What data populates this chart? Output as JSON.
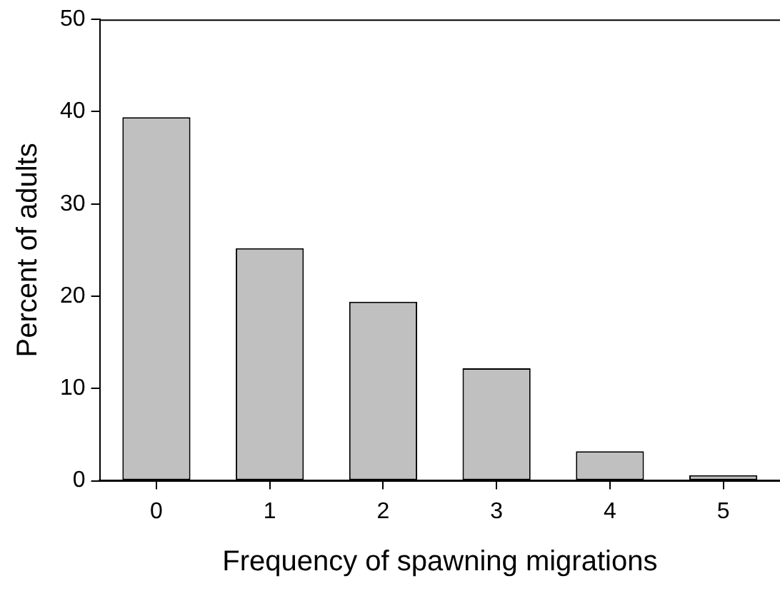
{
  "chart_data": {
    "type": "bar",
    "xlabel": "Frequency of spawning migrations",
    "ylabel": "Percent of adults",
    "categories": [
      "0",
      "1",
      "2",
      "3",
      "4",
      "5"
    ],
    "values": [
      39.4,
      25.2,
      19.4,
      12.2,
      3.2,
      0.6
    ],
    "color": "#c0c0c0",
    "ylim": [
      0,
      50
    ],
    "yticks": [
      0,
      10,
      20,
      30,
      40,
      50
    ],
    "grid": false,
    "legend": false
  }
}
